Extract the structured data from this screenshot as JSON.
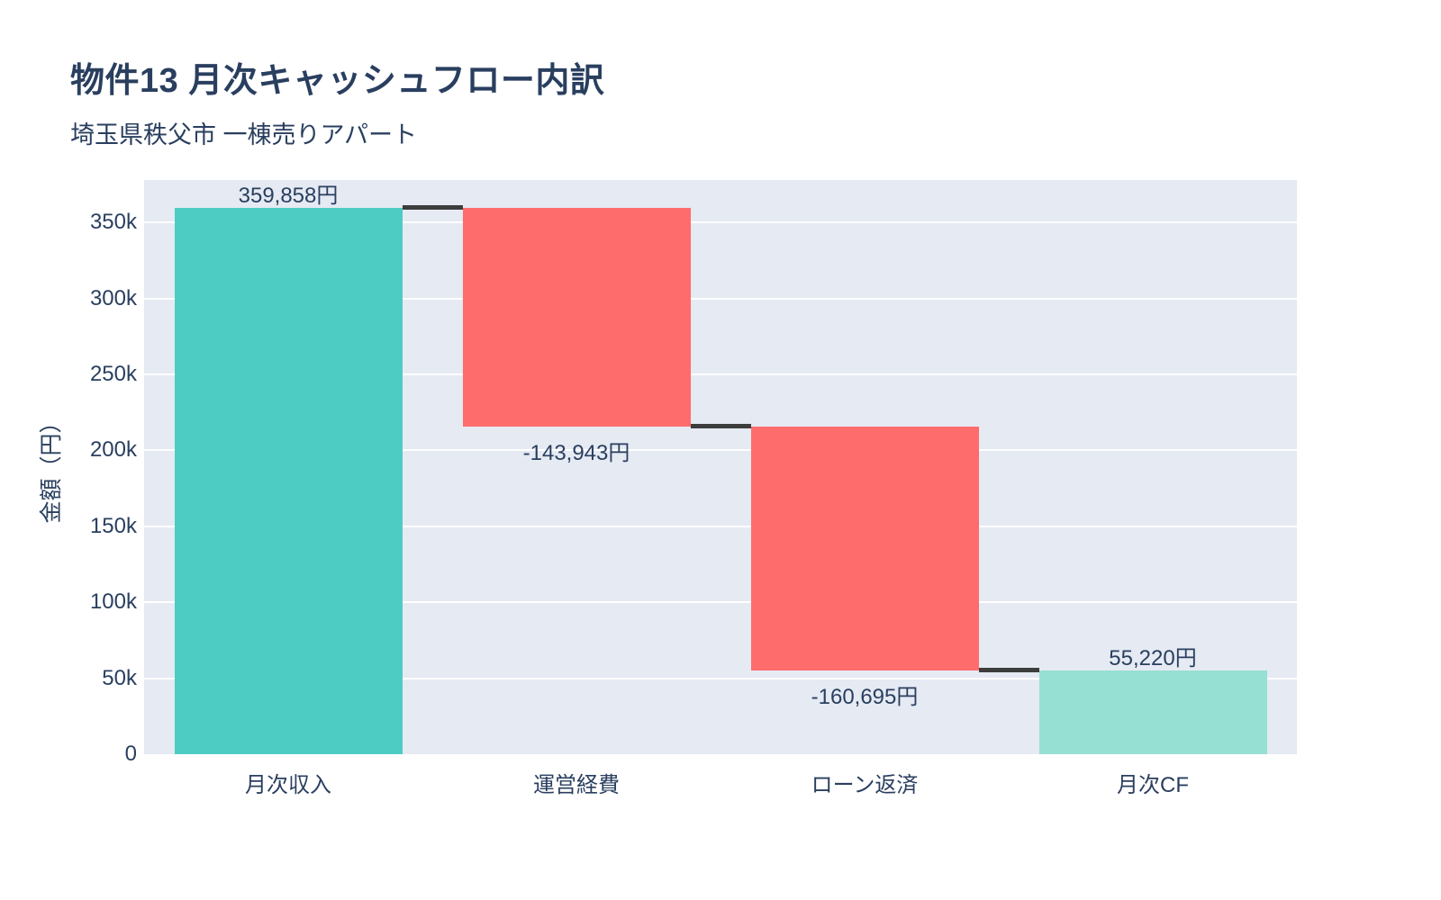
{
  "chart_data": {
    "type": "waterfall",
    "title": "物件13 月次キャッシュフロー内訳",
    "subtitle": "埼玉県秩父市 一棟売りアパート",
    "ylabel": "金額（円）",
    "xlabel": "",
    "categories": [
      "月次収入",
      "運営経費",
      "ローン返済",
      "月次CF"
    ],
    "measures": [
      "relative",
      "relative",
      "relative",
      "total"
    ],
    "values": [
      359858,
      -143943,
      -160695,
      55220
    ],
    "bar_labels": [
      "359,858円",
      "-143,943円",
      "-160,695円",
      "55,220円"
    ],
    "cumulative_levels": [
      359858,
      215915,
      55220,
      55220
    ],
    "ytick_values": [
      0,
      50000,
      100000,
      150000,
      200000,
      250000,
      300000,
      350000
    ],
    "ytick_labels": [
      "0",
      "50k",
      "100k",
      "150k",
      "200k",
      "250k",
      "300k",
      "350k"
    ],
    "ylim": [
      0,
      378000
    ],
    "grid": true,
    "legend": "none",
    "colors": {
      "increasing": "#4DCCC4",
      "decreasing": "#FF6C6C",
      "total": "#96E0D3",
      "connector": "#3D3D3D",
      "plot_background": "#E5EAF3",
      "gridline": "#FFFFFF",
      "text": "#2A3F5F"
    }
  }
}
